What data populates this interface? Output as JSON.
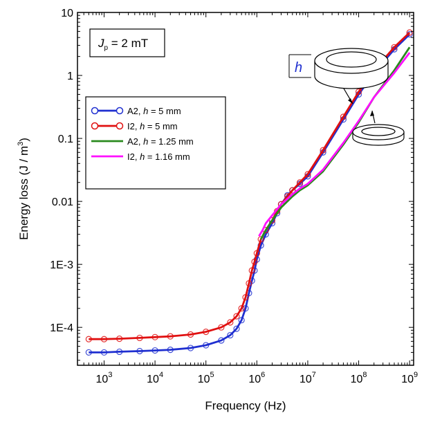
{
  "chart_data": {
    "type": "line",
    "xlabel": "Frequency (Hz)",
    "ylabel": "Energy loss (J / m",
    "ylabel_sup": "3",
    "ylabel_close": ")",
    "x_scale": "log",
    "y_scale": "log",
    "xlim": [
      300,
      1200000000
    ],
    "ylim": [
      2.5e-05,
      10
    ],
    "x_tick_labels": [
      {
        "value": 1000,
        "base": "10",
        "exp": "3"
      },
      {
        "value": 10000,
        "base": "10",
        "exp": "4"
      },
      {
        "value": 100000,
        "base": "10",
        "exp": "5"
      },
      {
        "value": 1000000,
        "base": "10",
        "exp": "6"
      },
      {
        "value": 10000000,
        "base": "10",
        "exp": "7"
      },
      {
        "value": 100000000,
        "base": "10",
        "exp": "8"
      },
      {
        "value": 1000000000,
        "base": "10",
        "exp": "9"
      }
    ],
    "y_tick_labels": [
      {
        "value": 0.0001,
        "label": "1E-4"
      },
      {
        "value": 0.001,
        "label": "1E-3"
      },
      {
        "value": 0.01,
        "label": "0.01"
      },
      {
        "value": 0.1,
        "label": "0.1"
      },
      {
        "value": 1,
        "label": "1"
      },
      {
        "value": 10,
        "label": "10"
      }
    ],
    "annotation": {
      "J": "J",
      "sub": "p",
      "rest": " = 2 mT"
    },
    "inset_label": "h",
    "legend_placement": "upper-left",
    "series": [
      {
        "name_a": "A2, ",
        "name_h": "h",
        "name_b": " = 5 mm",
        "color": "#1f2fd0",
        "marker": "circle",
        "x": [
          500,
          1000,
          2000,
          5000,
          10000,
          20000,
          50000,
          100000,
          200000,
          300000,
          400000,
          500000,
          600000,
          700000,
          800000,
          900000,
          1000000,
          1200000,
          1500000,
          2000000,
          2500000,
          3000000,
          4000000,
          5000000,
          7000000,
          10000000,
          20000000,
          50000000,
          100000000,
          200000000,
          500000000,
          1000000000
        ],
        "y": [
          4e-05,
          4e-05,
          4.1e-05,
          4.2e-05,
          4.3e-05,
          4.4e-05,
          4.7e-05,
          5.2e-05,
          6.2e-05,
          7.5e-05,
          9.5e-05,
          0.00013,
          0.0002,
          0.00035,
          0.00055,
          0.0008,
          0.0012,
          0.002,
          0.003,
          0.0045,
          0.0065,
          0.009,
          0.0125,
          0.015,
          0.019,
          0.025,
          0.06,
          0.2,
          0.5,
          1.1,
          2.6,
          4.5
        ]
      },
      {
        "name_a": "I2, ",
        "name_h": "h",
        "name_b": " = 5 mm",
        "color": "#e01010",
        "marker": "circle",
        "x": [
          500,
          1000,
          2000,
          5000,
          10000,
          20000,
          50000,
          100000,
          200000,
          300000,
          400000,
          500000,
          600000,
          700000,
          800000,
          900000,
          1000000,
          1200000,
          1500000,
          2000000,
          2500000,
          3000000,
          4000000,
          5000000,
          7000000,
          10000000,
          20000000,
          50000000,
          100000000,
          200000000,
          500000000,
          1000000000
        ],
        "y": [
          6.5e-05,
          6.5e-05,
          6.6e-05,
          6.8e-05,
          7e-05,
          7.2e-05,
          7.7e-05,
          8.5e-05,
          0.0001,
          0.00012,
          0.00015,
          0.0002,
          0.0003,
          0.0005,
          0.0008,
          0.0011,
          0.0015,
          0.0025,
          0.0035,
          0.005,
          0.007,
          0.009,
          0.012,
          0.015,
          0.02,
          0.027,
          0.065,
          0.22,
          0.55,
          1.2,
          2.8,
          4.8
        ]
      },
      {
        "name_a": "A2, ",
        "name_h": "h",
        "name_b": " = 1.25 mm",
        "color": "#2a8a1e",
        "marker": "none",
        "x": [
          1200000,
          1500000,
          2000000,
          3000000,
          5000000,
          7000000,
          10000000,
          20000000,
          50000000,
          100000000,
          200000000,
          500000000,
          1000000000
        ],
        "y": [
          0.0025,
          0.0035,
          0.005,
          0.008,
          0.012,
          0.015,
          0.018,
          0.03,
          0.08,
          0.18,
          0.45,
          1.2,
          2.8
        ]
      },
      {
        "name_a": "I2, ",
        "name_h": "h",
        "name_b": " = 1.16 mm",
        "color": "#ff10ff",
        "marker": "none",
        "x": [
          1100000,
          1300000,
          1500000,
          2000000,
          3000000,
          4000000,
          5000000,
          7000000,
          10000000,
          20000000,
          50000000,
          100000000,
          200000000,
          500000000,
          1000000000
        ],
        "y": [
          0.0028,
          0.0035,
          0.0045,
          0.006,
          0.009,
          0.011,
          0.013,
          0.016,
          0.019,
          0.032,
          0.085,
          0.19,
          0.45,
          1.1,
          2.3
        ]
      }
    ]
  }
}
